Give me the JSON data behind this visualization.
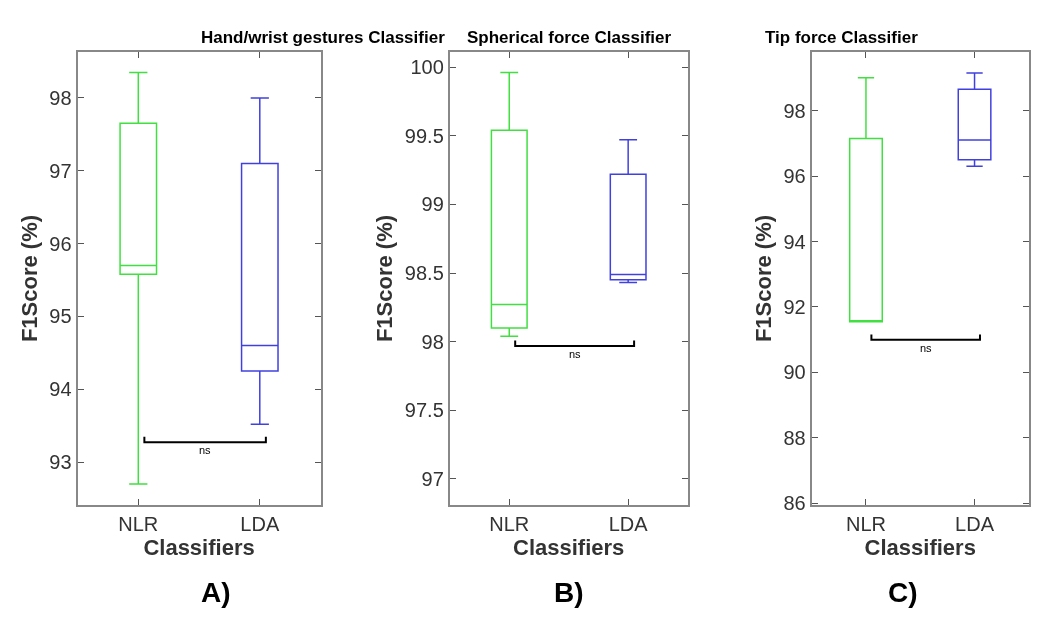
{
  "chart_data": [
    {
      "type": "box",
      "title": "Hand/wrist gestures Classifier",
      "xlabel": "Classifiers",
      "ylabel": "F1Score (%)",
      "categories": [
        "NLR",
        "LDA"
      ],
      "colors": [
        "#40e040",
        "#4040e0"
      ],
      "boxes": [
        {
          "low": 92.7,
          "q1": 95.58,
          "median": 95.7,
          "q3": 97.65,
          "high": 98.35
        },
        {
          "low": 93.52,
          "q1": 94.25,
          "median": 94.6,
          "q3": 97.1,
          "high": 98.0
        }
      ],
      "ylim": [
        92.41,
        98.63
      ],
      "yticks": [
        93,
        94,
        95,
        96,
        97,
        98
      ],
      "annotations": [
        "ns",
        "A)"
      ]
    },
    {
      "type": "box",
      "title": "Spherical force Classifier",
      "xlabel": "Classifiers",
      "ylabel": "F1Score (%)",
      "categories": [
        "NLR",
        "LDA"
      ],
      "colors": [
        "#40e040",
        "#4040e0"
      ],
      "boxes": [
        {
          "low": 98.04,
          "q1": 98.1,
          "median": 98.27,
          "q3": 99.54,
          "high": 99.96
        },
        {
          "low": 98.43,
          "q1": 98.45,
          "median": 98.49,
          "q3": 99.22,
          "high": 99.47
        }
      ],
      "ylim": [
        96.81,
        100.11
      ],
      "yticks": [
        97,
        97.5,
        98,
        98.5,
        99,
        99.5,
        100
      ],
      "annotations": [
        "ns",
        "B)"
      ]
    },
    {
      "type": "box",
      "title": "Tip force Classifier",
      "xlabel": "Classifiers",
      "ylabel": "F1Score (%)",
      "categories": [
        "NLR",
        "LDA"
      ],
      "colors": [
        "#40e040",
        "#4040e0"
      ],
      "boxes": [
        {
          "low": 91.55,
          "q1": 91.55,
          "median": 91.55,
          "q3": 97.15,
          "high": 99.0
        },
        {
          "low": 96.3,
          "q1": 96.5,
          "median": 97.1,
          "q3": 98.65,
          "high": 99.15
        }
      ],
      "ylim": [
        85.95,
        99.79
      ],
      "yticks": [
        86,
        88,
        90,
        92,
        94,
        96,
        98
      ],
      "annotations": [
        "ns",
        "C)"
      ]
    }
  ]
}
